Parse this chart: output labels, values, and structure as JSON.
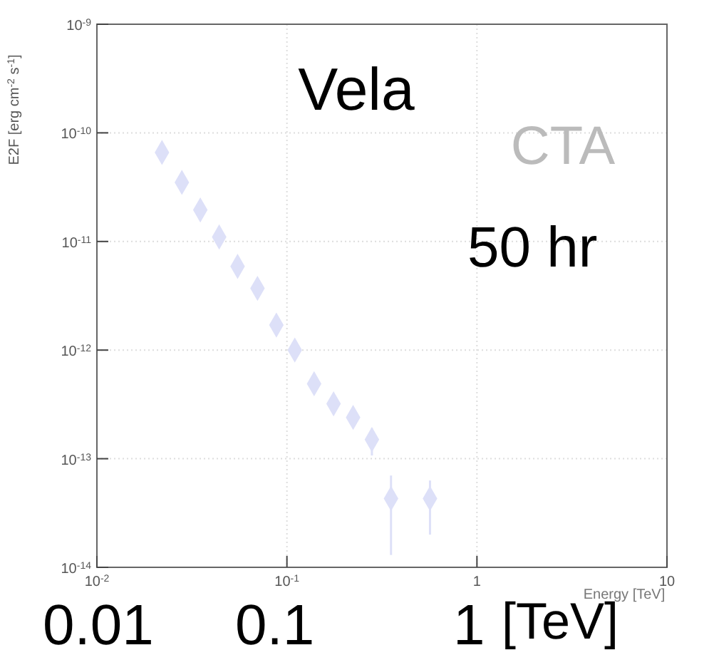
{
  "chart_data": {
    "type": "scatter",
    "title": "Vela",
    "xlabel": "Energy [TeV]",
    "ylabel": "E2F [erg cm$^{-2}$ s$^{-1}$]",
    "log": "xy",
    "grid": true,
    "marker": "diamond",
    "line_style": "none",
    "xlim": [
      0.01,
      10
    ],
    "xticks": [
      {
        "value": 0.01,
        "label": "10$^{-2}$"
      },
      {
        "value": 0.1,
        "label": "10$^{-1}$"
      },
      1,
      10
    ],
    "ylim": [
      1e-14,
      1e-09
    ],
    "yticks": [
      {
        "value": 1e-14,
        "label": "10$^{-14}$"
      },
      {
        "value": 1e-13,
        "label": "10$^{-13}$"
      },
      {
        "value": 1e-12,
        "label": "10$^{-12}$"
      },
      {
        "value": 1e-11,
        "label": "10$^{-11}$"
      },
      {
        "value": 1e-10,
        "label": "10$^{-10}$"
      },
      {
        "value": 1e-09,
        "label": "10$^{-9}$"
      }
    ],
    "series": [
      {
        "color": "#dde0f8",
        "x": [
          0.022,
          0.028,
          0.035,
          0.044,
          0.055,
          0.07,
          0.088,
          0.11,
          0.139,
          0.176,
          0.223,
          0.28,
          0.353,
          0.566
        ],
        "values": [
          6.6e-11,
          3.5e-11,
          1.95e-11,
          1.1e-11,
          5.9e-12,
          3.7e-12,
          1.7e-12,
          1e-12,
          4.9e-13,
          3.2e-13,
          2.4e-13,
          1.5e-13,
          4.3e-14,
          4.3e-14
        ],
        "errors": [
          null,
          null,
          null,
          null,
          null,
          null,
          null,
          null,
          null,
          null,
          null,
          [
            1.07e-13,
            1.9e-13
          ],
          [
            1.3e-14,
            7e-14
          ],
          [
            2e-14,
            6.3e-14
          ]
        ]
      }
    ],
    "annotations": [
      "50 hr",
      "CTA",
      "0.01",
      "0.1",
      "1",
      "[TeV]"
    ]
  }
}
